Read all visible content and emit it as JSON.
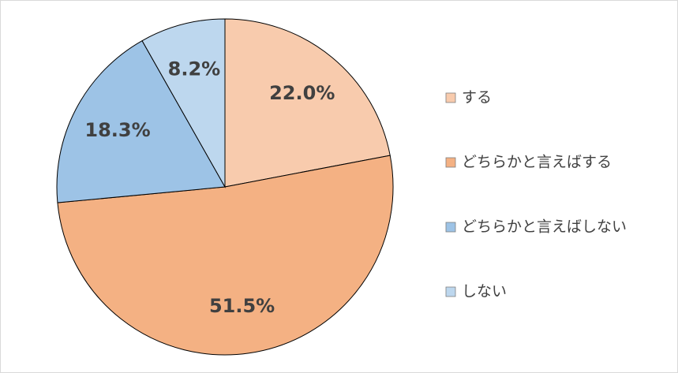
{
  "chart_data": {
    "type": "pie",
    "categories": [
      "する",
      "どちらかと言えばする",
      "どちらかと言えばしない",
      "しない"
    ],
    "values": [
      22.0,
      51.5,
      18.3,
      8.2
    ],
    "value_labels": [
      "22.0%",
      "51.5%",
      "18.3%",
      "8.2%"
    ],
    "colors": [
      "#F8CBAD",
      "#F4B183",
      "#9DC3E6",
      "#BDD7EE"
    ],
    "legend": "right"
  }
}
